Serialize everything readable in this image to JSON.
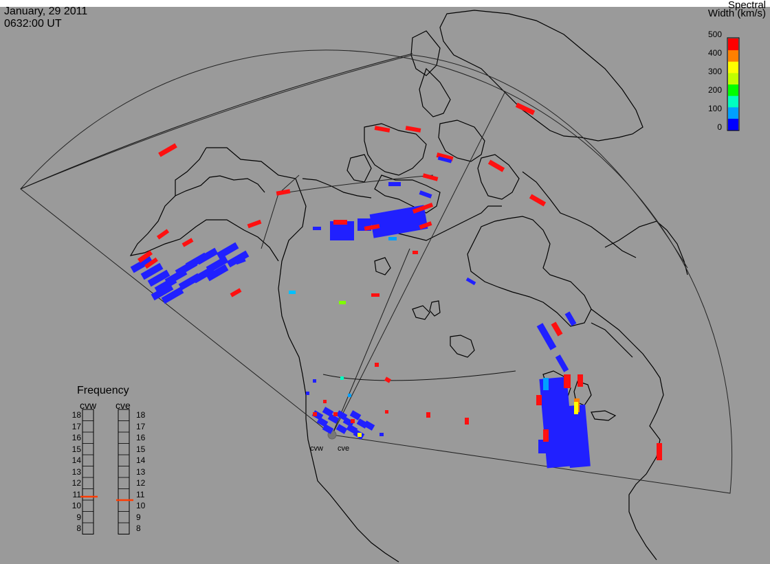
{
  "header": {
    "date": "January, 29 2011",
    "time": "0632:00 UT"
  },
  "colorbar": {
    "title_line1": "Spectral",
    "title_line2": "Width (km/s)",
    "ticks": [
      "500",
      "400",
      "300",
      "200",
      "100",
      "0"
    ],
    "colors": [
      "#0000ff",
      "#00a0ff",
      "#00ffc0",
      "#00ff00",
      "#c0ff00",
      "#ffff00",
      "#ff8000",
      "#ff0000"
    ]
  },
  "frequency_panel": {
    "title": "Frequency",
    "left_label": "cvw",
    "right_label": "cve",
    "levels": [
      "18",
      "17",
      "16",
      "15",
      "14",
      "13",
      "12",
      "11",
      "10",
      "9",
      "8"
    ],
    "cvw_value_mhz": 10.8,
    "cve_value_mhz": 10.5,
    "indicator_color": "#ff3b00"
  },
  "sites": {
    "cvw": "cvw",
    "cve": "cve"
  },
  "colors": {
    "background": "#9a9a9a",
    "coast": "#000000",
    "low_width": "#2020ff",
    "high_width": "#ff1010"
  }
}
